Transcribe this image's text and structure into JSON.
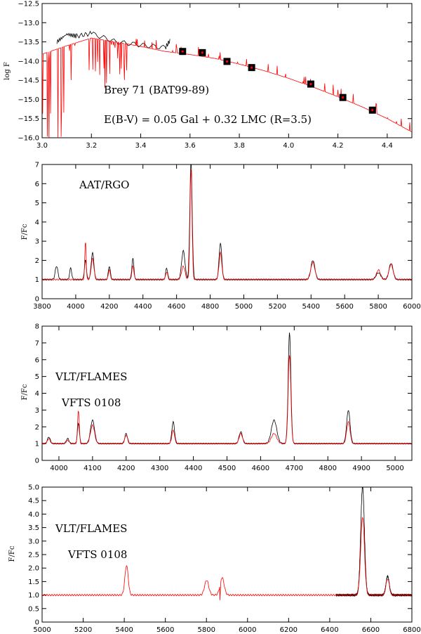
{
  "chart_data": [
    {
      "type": "line",
      "ylabel": "log F",
      "xlim": [
        3.0,
        4.5
      ],
      "ylim": [
        -16.0,
        -12.5
      ],
      "xticks": [
        "3.0",
        "3.2",
        "3.4",
        "3.6",
        "3.8",
        "4.0",
        "4.2",
        "4.4"
      ],
      "yticks": [
        "-12.5",
        "-13.0",
        "-13.5",
        "-14.0",
        "-14.5",
        "-15.0",
        "-15.5",
        "-16.0"
      ],
      "annotations": [
        "Brey 71 (BAT99-89)",
        "E(B-V) = 0.05 Gal + 0.32 LMC (R=3.5)"
      ],
      "colors": {
        "observed": "#000000",
        "model": "#ff0000"
      },
      "photometry": {
        "x": [
          3.57,
          3.65,
          3.75,
          3.85,
          4.09,
          4.22,
          4.34
        ],
        "y": [
          -13.75,
          -13.78,
          -14.01,
          -14.17,
          -14.6,
          -14.95,
          -15.28
        ]
      },
      "model_continuum": {
        "x": [
          3.0,
          3.1,
          3.2,
          3.3,
          3.4,
          3.5,
          3.6,
          3.7,
          3.8,
          3.9,
          4.0,
          4.1,
          4.2,
          4.3,
          4.4,
          4.5
        ],
        "y": [
          -13.82,
          -13.6,
          -13.4,
          -13.5,
          -13.62,
          -13.75,
          -13.83,
          -13.93,
          -14.08,
          -14.25,
          -14.45,
          -14.68,
          -14.93,
          -15.2,
          -15.5,
          -15.85
        ]
      },
      "observed_segments": [
        {
          "x": [
            3.06,
            3.1,
            3.14,
            3.2,
            3.3,
            3.4,
            3.5,
            3.52
          ],
          "y": [
            -13.5,
            -13.3,
            -13.35,
            -13.28,
            -13.5,
            -13.58,
            -13.65,
            -13.45
          ]
        }
      ]
    },
    {
      "type": "line",
      "ylabel": "F/Fc",
      "xlim": [
        3800,
        6000
      ],
      "ylim": [
        0,
        7
      ],
      "xticks": [
        "3800",
        "4000",
        "4200",
        "4400",
        "4600",
        "4800",
        "5000",
        "5200",
        "5400",
        "5600",
        "5800",
        "6000"
      ],
      "yticks": [
        "0",
        "1",
        "2",
        "3",
        "4",
        "5",
        "6",
        "7"
      ],
      "annotations": [
        "AAT/RGO"
      ],
      "series": [
        {
          "color": "#000000",
          "lines": [
            [
              3886,
              1.7,
              8
            ],
            [
              3970,
              1.6,
              6
            ],
            [
              4058,
              2.0,
              6
            ],
            [
              4100,
              2.4,
              8
            ],
            [
              4200,
              1.7,
              6
            ],
            [
              4340,
              2.1,
              6
            ],
            [
              4541,
              1.6,
              6
            ],
            [
              4640,
              2.5,
              10
            ],
            [
              4686,
              7.2,
              7
            ],
            [
              4861,
              2.9,
              8
            ],
            [
              5411,
              2.0,
              12
            ],
            [
              5801,
              1.35,
              14
            ],
            [
              5876,
              1.85,
              12
            ]
          ]
        },
        {
          "color": "#ff0000",
          "lines": [
            [
              4058,
              3.0,
              4
            ],
            [
              4100,
              2.1,
              8
            ],
            [
              4200,
              1.5,
              6
            ],
            [
              4340,
              1.7,
              6
            ],
            [
              4541,
              1.4,
              6
            ],
            [
              4640,
              1.7,
              10
            ],
            [
              4686,
              6.8,
              6
            ],
            [
              4861,
              2.4,
              8
            ],
            [
              5411,
              1.9,
              12
            ],
            [
              5801,
              1.5,
              12
            ],
            [
              5876,
              1.8,
              12
            ]
          ]
        }
      ]
    },
    {
      "type": "line",
      "ylabel": "F/Fc",
      "xlim": [
        3950,
        5050
      ],
      "ylim": [
        0,
        8
      ],
      "xticks": [
        "4000",
        "4100",
        "4200",
        "4300",
        "4400",
        "4500",
        "4600",
        "4700",
        "4800",
        "4900",
        "5000"
      ],
      "yticks": [
        "0",
        "1",
        "2",
        "3",
        "4",
        "5",
        "6",
        "7",
        "8"
      ],
      "annotations": [
        "VLT/FLAMES",
        "VFTS 0108"
      ],
      "series": [
        {
          "color": "#000000",
          "lines": [
            [
              3970,
              1.4,
              4
            ],
            [
              4026,
              1.3,
              4
            ],
            [
              4058,
              2.2,
              3
            ],
            [
              4100,
              2.4,
              6
            ],
            [
              4200,
              1.6,
              4
            ],
            [
              4340,
              2.3,
              4
            ],
            [
              4541,
              1.7,
              5
            ],
            [
              4640,
              2.4,
              8
            ],
            [
              4686,
              7.6,
              4
            ],
            [
              4861,
              3.0,
              5
            ]
          ]
        },
        {
          "color": "#ff0000",
          "lines": [
            [
              3970,
              1.3,
              4
            ],
            [
              4026,
              1.2,
              4
            ],
            [
              4058,
              3.0,
              2.5
            ],
            [
              4100,
              2.1,
              6
            ],
            [
              4200,
              1.5,
              4
            ],
            [
              4340,
              1.8,
              4
            ],
            [
              4541,
              1.6,
              5
            ],
            [
              4640,
              1.6,
              8
            ],
            [
              4686,
              6.3,
              4
            ],
            [
              4861,
              2.3,
              5
            ]
          ]
        }
      ]
    },
    {
      "type": "line",
      "ylabel": "F/Fc",
      "xlim": [
        5000,
        6800
      ],
      "ylim": [
        0,
        5.0
      ],
      "xticks": [
        "5000",
        "5200",
        "5400",
        "5600",
        "5800",
        "6000",
        "6200",
        "6400",
        "6600",
        "6800"
      ],
      "yticks": [
        "0",
        "0.5",
        "1.0",
        "1.5",
        "2.0",
        "2.5",
        "3.0",
        "3.5",
        "4.0",
        "4.5",
        "5.0"
      ],
      "annotations": [
        "VLT/FLAMES",
        "VFTS 0108"
      ],
      "series": [
        {
          "color": "#000000",
          "lines": [
            [
              6560,
              5.0,
              9
            ],
            [
              6682,
              1.7,
              8
            ]
          ]
        },
        {
          "color": "#ff0000",
          "lines": [
            [
              5411,
              2.1,
              8
            ],
            [
              5801,
              1.55,
              10
            ],
            [
              5876,
              1.65,
              10
            ],
            [
              6560,
              3.9,
              9
            ],
            [
              6682,
              1.6,
              8
            ]
          ]
        }
      ]
    }
  ]
}
